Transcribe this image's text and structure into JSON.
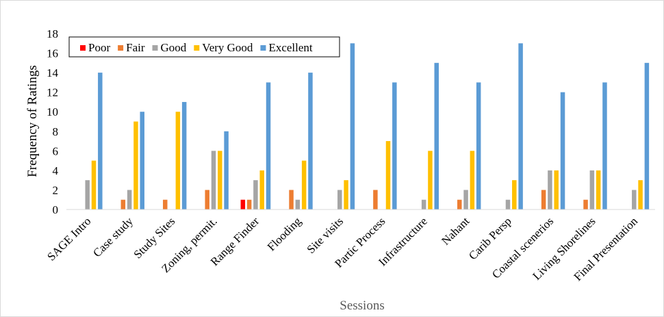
{
  "chart_data": {
    "type": "bar",
    "ylabel": "Frequency  of Ratings",
    "xlabel": "Sessions",
    "ylim": [
      0,
      18
    ],
    "yticks": [
      0,
      2,
      4,
      6,
      8,
      10,
      12,
      14,
      16,
      18
    ],
    "grid": false,
    "legend_position": "top-left",
    "categories": [
      "SAGE Intro",
      "Case study",
      "Study Sites",
      "Zoning, permit.",
      "Range Finder",
      "Flooding",
      "Site visits",
      "Partic Process",
      "Infrastructure",
      "Nahant",
      "Carib Persp",
      "Coastal scenerios",
      "Living Shorelines",
      "Final Presentation"
    ],
    "series": [
      {
        "name": "Poor",
        "color": "#ff0000",
        "values": [
          0,
          0,
          0,
          0,
          1,
          0,
          0,
          0,
          0,
          0,
          0,
          0,
          0,
          0
        ]
      },
      {
        "name": "Fair",
        "color": "#ed7d31",
        "values": [
          0,
          1,
          1,
          2,
          1,
          2,
          0,
          2,
          0,
          1,
          0,
          2,
          1,
          0
        ]
      },
      {
        "name": "Good",
        "color": "#a5a5a5",
        "values": [
          3,
          2,
          0,
          6,
          3,
          1,
          2,
          0,
          1,
          2,
          1,
          4,
          4,
          2
        ]
      },
      {
        "name": "Very Good",
        "color": "#ffc000",
        "values": [
          5,
          9,
          10,
          6,
          4,
          5,
          3,
          7,
          6,
          6,
          3,
          4,
          4,
          3
        ]
      },
      {
        "name": "Excellent",
        "color": "#5b9bd5",
        "values": [
          14,
          10,
          11,
          8,
          13,
          14,
          17,
          13,
          15,
          13,
          17,
          12,
          13,
          15
        ]
      }
    ]
  }
}
